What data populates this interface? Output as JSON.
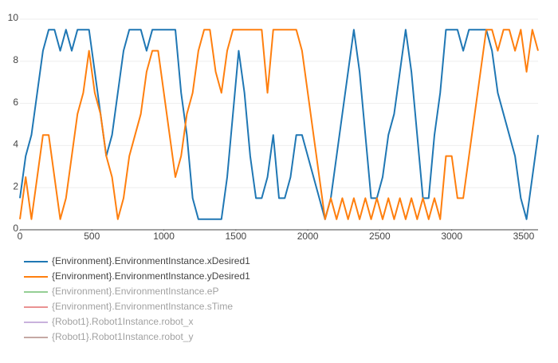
{
  "chart_data": {
    "type": "line",
    "x": [
      0,
      40,
      80,
      120,
      160,
      200,
      240,
      280,
      320,
      360,
      400,
      440,
      480,
      520,
      560,
      600,
      640,
      680,
      720,
      760,
      800,
      840,
      880,
      920,
      960,
      1000,
      1040,
      1080,
      1120,
      1160,
      1200,
      1240,
      1280,
      1320,
      1360,
      1400,
      1440,
      1480,
      1520,
      1560,
      1600,
      1640,
      1680,
      1720,
      1760,
      1800,
      1840,
      1880,
      1920,
      1960,
      2000,
      2040,
      2080,
      2120,
      2160,
      2200,
      2240,
      2280,
      2320,
      2360,
      2400,
      2440,
      2480,
      2520,
      2560,
      2600,
      2640,
      2680,
      2720,
      2760,
      2800,
      2840,
      2880,
      2920,
      2960,
      3000,
      3040,
      3080,
      3120,
      3160,
      3200,
      3240,
      3280,
      3320,
      3360,
      3400,
      3440,
      3480,
      3520,
      3560,
      3600
    ],
    "series": [
      {
        "name": "{Environment}.EnvironmentInstance.xDesired1",
        "color": "#1f77b4",
        "visible": true,
        "values": [
          1.5,
          3.5,
          4.5,
          6.5,
          8.5,
          9.5,
          9.5,
          8.5,
          9.5,
          8.5,
          9.5,
          9.5,
          9.5,
          7.5,
          5.5,
          3.5,
          4.5,
          6.5,
          8.5,
          9.5,
          9.5,
          9.5,
          8.5,
          9.5,
          9.5,
          9.5,
          9.5,
          9.5,
          6.5,
          4.5,
          1.5,
          0.5,
          0.5,
          0.5,
          0.5,
          0.5,
          2.5,
          5.5,
          8.5,
          6.5,
          3.5,
          1.5,
          1.5,
          2.5,
          4.5,
          1.5,
          1.5,
          2.5,
          4.5,
          4.5,
          3.5,
          2.5,
          1.5,
          0.5,
          1.5,
          3.5,
          5.5,
          7.5,
          9.5,
          7.5,
          4.5,
          1.5,
          1.5,
          2.5,
          4.5,
          5.5,
          7.5,
          9.5,
          7.5,
          4.5,
          1.5,
          1.5,
          4.5,
          6.5,
          9.5,
          9.5,
          9.5,
          8.5,
          9.5,
          9.5,
          9.5,
          9.5,
          8.5,
          6.5,
          5.5,
          4.5,
          3.5,
          1.5,
          0.5,
          2.5,
          4.5
        ]
      },
      {
        "name": "{Environment}.EnvironmentInstance.yDesired1",
        "color": "#ff7f0e",
        "visible": true,
        "values": [
          0.5,
          2.5,
          0.5,
          2.5,
          4.5,
          4.5,
          2.5,
          0.5,
          1.5,
          3.5,
          5.5,
          6.5,
          8.5,
          6.5,
          5.5,
          3.5,
          2.5,
          0.5,
          1.5,
          3.5,
          4.5,
          5.5,
          7.5,
          8.5,
          8.5,
          6.5,
          4.5,
          2.5,
          3.5,
          5.5,
          6.5,
          8.5,
          9.5,
          9.5,
          7.5,
          6.5,
          8.5,
          9.5,
          9.5,
          9.5,
          9.5,
          9.5,
          9.5,
          6.5,
          9.5,
          9.5,
          9.5,
          9.5,
          9.5,
          8.5,
          6.5,
          4.5,
          2.5,
          0.5,
          1.5,
          0.5,
          1.5,
          0.5,
          1.5,
          0.5,
          1.5,
          0.5,
          1.5,
          0.5,
          1.5,
          0.5,
          1.5,
          0.5,
          1.5,
          0.5,
          1.5,
          0.5,
          1.5,
          0.5,
          3.5,
          3.5,
          1.5,
          1.5,
          3.5,
          5.5,
          7.5,
          9.5,
          9.5,
          8.5,
          9.5,
          9.5,
          8.5,
          9.5,
          7.5,
          9.5,
          8.5
        ]
      },
      {
        "name": "{Environment}.EnvironmentInstance.eP",
        "color": "#2ca02c",
        "visible": false
      },
      {
        "name": "{Environment}.EnvironmentInstance.sTime",
        "color": "#d62728",
        "visible": false
      },
      {
        "name": "{Robot1}.Robot1Instance.robot_x",
        "color": "#9467bd",
        "visible": false
      },
      {
        "name": "{Robot1}.Robot1Instance.robot_y",
        "color": "#8c564b",
        "visible": false
      }
    ],
    "xlim": [
      0,
      3600
    ],
    "xticks": [
      0,
      500,
      1000,
      1500,
      2000,
      2500,
      3000,
      3500
    ],
    "ylim": [
      0,
      10
    ],
    "yticks": [
      0,
      2,
      4,
      6,
      8,
      10
    ],
    "grid": true
  }
}
